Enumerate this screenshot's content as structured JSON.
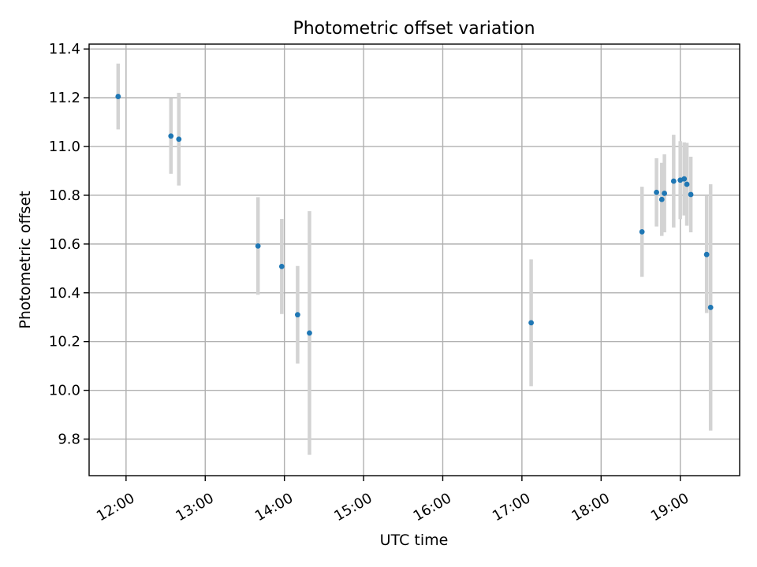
{
  "chart_data": {
    "type": "scatter",
    "title": "Photometric offset variation",
    "xlabel": "UTC time",
    "ylabel": "Photometric offset",
    "xlim": [
      "11:32",
      "19:45"
    ],
    "ylim": [
      9.65,
      11.42
    ],
    "x_ticks": [
      "12:00",
      "13:00",
      "14:00",
      "15:00",
      "16:00",
      "17:00",
      "18:00",
      "19:00"
    ],
    "y_ticks": [
      9.8,
      10.0,
      10.2,
      10.4,
      10.6,
      10.8,
      11.0,
      11.2,
      11.4
    ],
    "grid": true,
    "colors": {
      "marker": "#1f77b4",
      "errorbar": "#d3d3d3"
    },
    "points": [
      {
        "x": "11:54",
        "y": 11.205,
        "err": 0.135
      },
      {
        "x": "12:34",
        "y": 11.043,
        "err": 0.155
      },
      {
        "x": "12:40",
        "y": 11.03,
        "err": 0.19
      },
      {
        "x": "13:40",
        "y": 10.592,
        "err": 0.2
      },
      {
        "x": "13:58",
        "y": 10.508,
        "err": 0.195
      },
      {
        "x": "14:10",
        "y": 10.31,
        "err": 0.2
      },
      {
        "x": "14:19",
        "y": 10.235,
        "err": 0.5
      },
      {
        "x": "17:07",
        "y": 10.277,
        "err": 0.26
      },
      {
        "x": "18:31",
        "y": 10.65,
        "err": 0.185
      },
      {
        "x": "18:42",
        "y": 10.812,
        "err": 0.14
      },
      {
        "x": "18:46",
        "y": 10.783,
        "err": 0.15
      },
      {
        "x": "18:48",
        "y": 10.808,
        "err": 0.16
      },
      {
        "x": "18:55",
        "y": 10.858,
        "err": 0.19
      },
      {
        "x": "19:00",
        "y": 10.862,
        "err": 0.16
      },
      {
        "x": "19:03",
        "y": 10.867,
        "err": 0.15
      },
      {
        "x": "19:05",
        "y": 10.845,
        "err": 0.17
      },
      {
        "x": "19:08",
        "y": 10.803,
        "err": 0.155
      },
      {
        "x": "19:20",
        "y": 10.557,
        "err": 0.24
      },
      {
        "x": "19:23",
        "y": 10.34,
        "err": 0.505
      }
    ]
  }
}
